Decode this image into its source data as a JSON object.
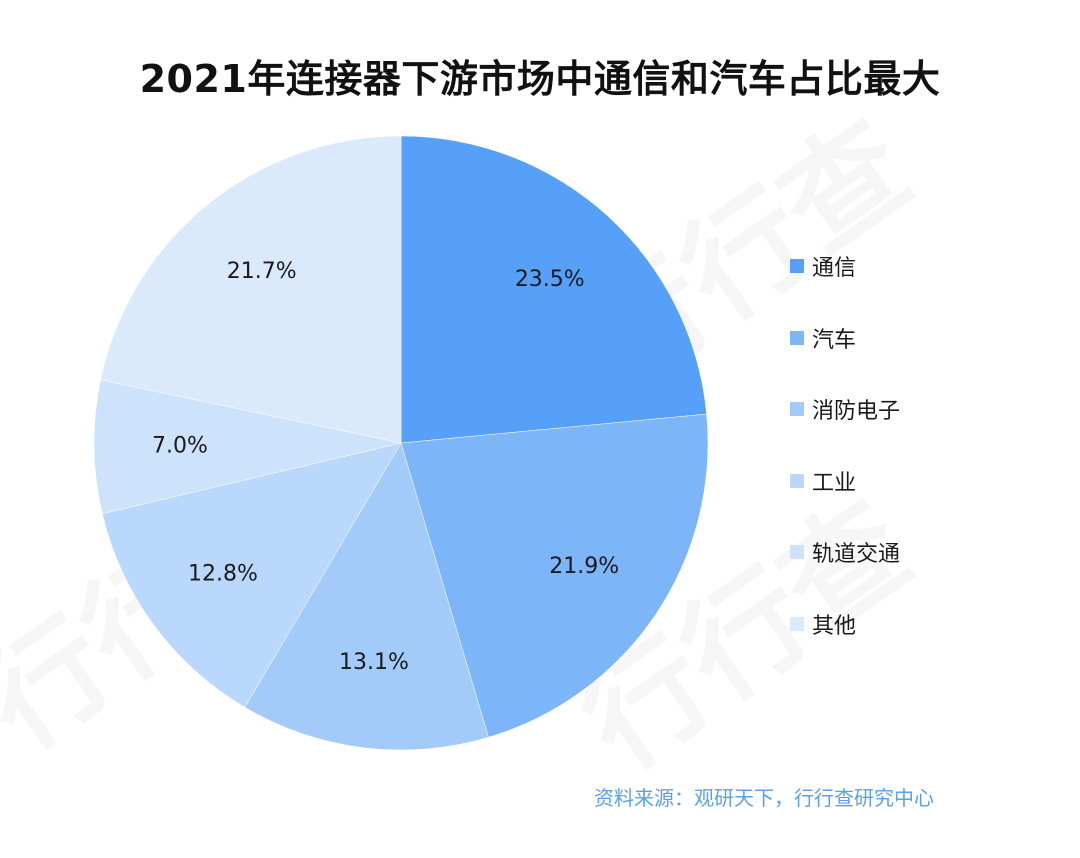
{
  "chart_data": {
    "type": "pie",
    "title": "2021年连接器下游市场中通信和汽车占比最大",
    "categories": [
      "通信",
      "汽车",
      "消防电子",
      "工业",
      "轨道交通",
      "其他"
    ],
    "values": [
      23.5,
      21.9,
      13.1,
      12.8,
      7.0,
      21.7
    ],
    "value_labels": [
      "23.5%",
      "21.9%",
      "13.1%",
      "12.8%",
      "7.0%",
      "21.7%"
    ],
    "colors": [
      "#56a0fa",
      "#7db6f8",
      "#a2cbfa",
      "#bad8fb",
      "#cde3fb",
      "#dae9fb"
    ],
    "start_angle_deg": 0,
    "direction": "clockwise",
    "legend_placement": "right"
  },
  "source": "资料来源：观研天下，行行查研究中心",
  "watermark": "行行查"
}
